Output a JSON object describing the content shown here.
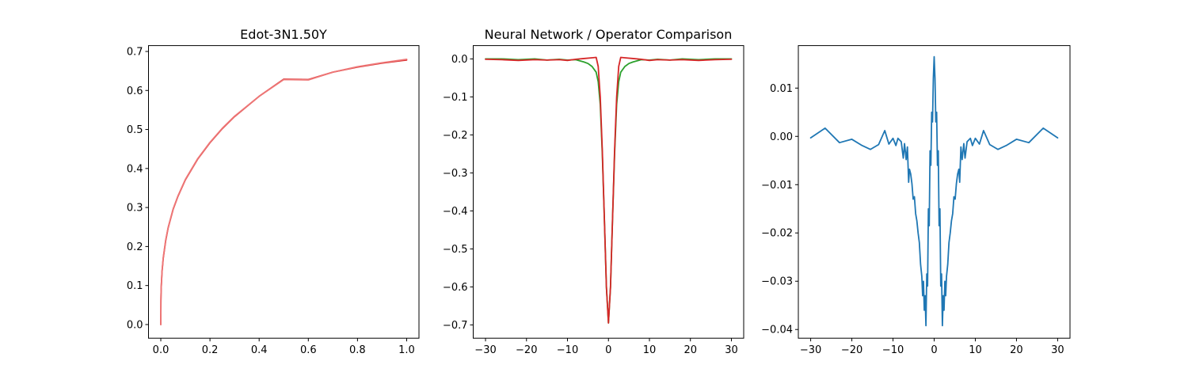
{
  "figure": {
    "background": "#ffffff"
  },
  "chart_data": [
    {
      "type": "line",
      "title": "Edot-3N1.50Y",
      "xlabel": "",
      "ylabel": "",
      "xlim": [
        -0.05,
        1.05
      ],
      "ylim": [
        -0.035,
        0.715
      ],
      "xticks": [
        0.0,
        0.2,
        0.4,
        0.6,
        0.8,
        1.0
      ],
      "xtick_labels": [
        "0.0",
        "0.2",
        "0.4",
        "0.6",
        "0.8",
        "1.0"
      ],
      "yticks": [
        0.0,
        0.1,
        0.2,
        0.3,
        0.4,
        0.5,
        0.6,
        0.7
      ],
      "ytick_labels": [
        "0.0",
        "0.1",
        "0.2",
        "0.3",
        "0.4",
        "0.5",
        "0.6",
        "0.7"
      ],
      "grid": false,
      "series": [
        {
          "color": "#d62728",
          "x": [
            0,
            0.0005,
            0.001,
            0.002,
            0.005,
            0.01,
            0.02,
            0.03,
            0.05,
            0.07,
            0.1,
            0.15,
            0.2,
            0.25,
            0.3,
            0.4,
            0.5,
            0.6,
            0.7,
            0.8,
            0.9,
            1.0
          ],
          "y": [
            0,
            0.06,
            0.077,
            0.098,
            0.135,
            0.17,
            0.215,
            0.248,
            0.295,
            0.329,
            0.371,
            0.424,
            0.466,
            0.502,
            0.533,
            0.585,
            0.629,
            0.628,
            0.647,
            0.66,
            0.67,
            0.678
          ]
        },
        {
          "color": "#ee7777",
          "x": [
            0,
            0.0005,
            0.001,
            0.002,
            0.005,
            0.01,
            0.02,
            0.03,
            0.05,
            0.07,
            0.1,
            0.15,
            0.2,
            0.25,
            0.3,
            0.4,
            0.5,
            0.6,
            0.7,
            0.8,
            0.9,
            1.0
          ],
          "y": [
            0,
            0.062,
            0.079,
            0.1,
            0.137,
            0.172,
            0.217,
            0.249,
            0.296,
            0.33,
            0.372,
            0.425,
            0.467,
            0.503,
            0.534,
            0.585,
            0.628,
            0.627,
            0.647,
            0.661,
            0.671,
            0.68
          ]
        }
      ]
    },
    {
      "type": "line",
      "title": "Neural Network / Operator Comparison",
      "xlabel": "",
      "ylabel": "",
      "xlim": [
        -33,
        33
      ],
      "ylim": [
        -0.735,
        0.035
      ],
      "xticks": [
        -30,
        -20,
        -10,
        0,
        10,
        20,
        30
      ],
      "xtick_labels": [
        "−30",
        "−20",
        "−10",
        "0",
        "10",
        "20",
        "30"
      ],
      "yticks": [
        0.0,
        -0.1,
        -0.2,
        -0.3,
        -0.4,
        -0.5,
        -0.6,
        -0.7
      ],
      "ytick_labels": [
        "0.0",
        "−0.1",
        "−0.2",
        "−0.3",
        "−0.4",
        "−0.5",
        "−0.6",
        "−0.7"
      ],
      "grid": false,
      "series": [
        {
          "color": "#2ca02c",
          "x": [
            -30,
            -26,
            -22,
            -18,
            -15,
            -12,
            -10,
            -8,
            -6,
            -5,
            -4,
            -3,
            -2.5,
            -2,
            -1.5,
            -1,
            -0.5,
            0,
            0.5,
            1,
            1.5,
            2,
            2.5,
            3,
            4,
            5,
            6,
            8,
            10,
            12,
            15,
            18,
            22,
            26,
            30
          ],
          "y": [
            0,
            0,
            -0.002,
            0,
            -0.003,
            -0.001,
            -0.003,
            -0.002,
            -0.008,
            -0.012,
            -0.02,
            -0.035,
            -0.06,
            -0.12,
            -0.25,
            -0.42,
            -0.6,
            -0.695,
            -0.6,
            -0.42,
            -0.25,
            -0.12,
            -0.06,
            -0.035,
            -0.02,
            -0.012,
            -0.008,
            -0.002,
            -0.003,
            -0.001,
            -0.003,
            0,
            -0.002,
            0,
            0
          ]
        },
        {
          "color": "#d62728",
          "x": [
            -30,
            -26,
            -22,
            -18,
            -15,
            -12,
            -10,
            -8,
            -6,
            -4,
            -3,
            -2.5,
            -2,
            -1.5,
            -1,
            -0.5,
            0,
            0.5,
            1,
            1.5,
            2,
            2.5,
            3,
            4,
            6,
            8,
            10,
            12,
            15,
            18,
            22,
            26,
            30
          ],
          "y": [
            -0.001,
            -0.002,
            -0.004,
            -0.002,
            -0.003,
            -0.002,
            -0.004,
            -0.001,
            0.001,
            0.003,
            0.004,
            -0.02,
            -0.1,
            -0.24,
            -0.42,
            -0.6,
            -0.695,
            -0.6,
            -0.42,
            -0.24,
            -0.1,
            -0.02,
            0.004,
            0.003,
            0.001,
            -0.001,
            -0.004,
            -0.002,
            -0.003,
            -0.002,
            -0.004,
            -0.002,
            -0.001
          ]
        }
      ]
    },
    {
      "type": "line",
      "title": "",
      "xlabel": "",
      "ylabel": "",
      "xlim": [
        -33,
        33
      ],
      "ylim": [
        -0.0418,
        0.0188
      ],
      "xticks": [
        -30,
        -20,
        -10,
        0,
        10,
        20,
        30
      ],
      "xtick_labels": [
        "−30",
        "−20",
        "−10",
        "0",
        "10",
        "20",
        "30"
      ],
      "yticks": [
        0.01,
        0.0,
        -0.01,
        -0.02,
        -0.03,
        -0.04
      ],
      "ytick_labels": [
        "0.01",
        "0.00",
        "−0.01",
        "−0.02",
        "−0.03",
        "−0.04"
      ],
      "grid": false,
      "series": [
        {
          "color": "#1f77b4",
          "x": [
            -30,
            -26.5,
            -23,
            -20,
            -17.5,
            -15.5,
            -13.5,
            -12,
            -11,
            -10,
            -9.3,
            -8.8,
            -8,
            -7.5,
            -7.2,
            -6.8,
            -6.5,
            -6.2,
            -6,
            -5.7,
            -5.4,
            -5.1,
            -4.8,
            -4.5,
            -4.2,
            -3.9,
            -3.6,
            -3.3,
            -3,
            -2.8,
            -2.6,
            -2.4,
            -2.2,
            -2,
            -1.8,
            -1.6,
            -1.4,
            -1.2,
            -1,
            -0.8,
            -0.6,
            -0.4,
            -0.2,
            0,
            0.2,
            0.4,
            0.6,
            0.8,
            1,
            1.2,
            1.4,
            1.6,
            1.8,
            2,
            2.2,
            2.4,
            2.6,
            2.8,
            3,
            3.3,
            3.6,
            3.9,
            4.2,
            4.5,
            4.8,
            5.1,
            5.4,
            5.7,
            6,
            6.2,
            6.5,
            6.8,
            7.2,
            7.5,
            8,
            8.8,
            9.3,
            10,
            11,
            12,
            13.5,
            15.5,
            17.5,
            20,
            23,
            26.5,
            30
          ],
          "y": [
            -0.0003,
            0.0017,
            -0.0013,
            -0.0006,
            -0.0019,
            -0.0027,
            -0.0017,
            0.0012,
            -0.0016,
            -0.0004,
            -0.0019,
            -0.0004,
            -0.0011,
            -0.0045,
            -0.0015,
            -0.0048,
            -0.0022,
            -0.0095,
            -0.0068,
            -0.0078,
            -0.0098,
            -0.013,
            -0.0125,
            -0.016,
            -0.0175,
            -0.02,
            -0.022,
            -0.0265,
            -0.029,
            -0.033,
            -0.03,
            -0.036,
            -0.033,
            -0.0392,
            -0.0285,
            -0.031,
            -0.015,
            -0.0185,
            -0.003,
            -0.006,
            0.005,
            0.003,
            0.012,
            0.0165,
            0.012,
            0.003,
            0.005,
            -0.006,
            -0.003,
            -0.0185,
            -0.015,
            -0.031,
            -0.0285,
            -0.0392,
            -0.033,
            -0.036,
            -0.03,
            -0.033,
            -0.029,
            -0.0265,
            -0.022,
            -0.02,
            -0.0175,
            -0.016,
            -0.0125,
            -0.013,
            -0.0098,
            -0.0078,
            -0.0068,
            -0.0095,
            -0.0022,
            -0.0048,
            -0.0015,
            -0.0045,
            -0.0011,
            -0.0004,
            -0.0019,
            -0.0004,
            -0.0016,
            0.0012,
            -0.0017,
            -0.0027,
            -0.0019,
            -0.0006,
            -0.0013,
            0.0017,
            -0.0003
          ]
        }
      ]
    }
  ]
}
